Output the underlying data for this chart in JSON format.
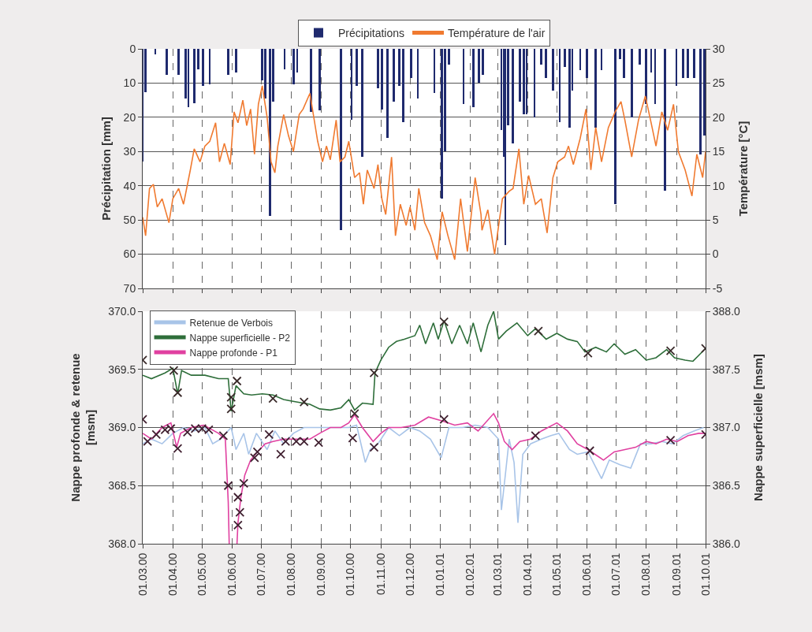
{
  "chart_data": [
    {
      "type": "bar",
      "ylabel": "Précipitation [mm]",
      "y2label": "Température [°C]",
      "legend": "top",
      "grid": true,
      "tick_labels": "y",
      "xlim": [
        "2000-03-01",
        "2001-10-01"
      ],
      "xticks": [
        {
          "value": "2000-03-01",
          "label": null
        },
        {
          "value": "2000-04-01",
          "label": null
        },
        {
          "value": "2000-05-01",
          "label": null
        },
        {
          "value": "2000-06-01",
          "label": null
        },
        {
          "value": "2000-07-01",
          "label": null
        },
        {
          "value": "2000-08-01",
          "label": null
        },
        {
          "value": "2000-09-01",
          "label": null
        },
        {
          "value": "2000-10-01",
          "label": null
        },
        {
          "value": "2000-11-01",
          "label": null
        },
        {
          "value": "2000-12-01",
          "label": null
        },
        {
          "value": "2001-01-01",
          "label": null
        },
        {
          "value": "2001-02-01",
          "label": null
        },
        {
          "value": "2001-03-01",
          "label": null
        },
        {
          "value": "2001-04-01",
          "label": null
        },
        {
          "value": "2001-05-01",
          "label": null
        },
        {
          "value": "2001-06-01",
          "label": null
        },
        {
          "value": "2001-07-01",
          "label": null
        },
        {
          "value": "2001-08-01",
          "label": null
        },
        {
          "value": "2001-09-01",
          "label": null
        },
        {
          "value": "2001-10-01",
          "label": null
        }
      ],
      "ylim": [
        70,
        0
      ],
      "yticks": [
        0,
        10,
        20,
        30,
        40,
        50,
        60,
        70
      ],
      "y2lim": [
        -5,
        30
      ],
      "y2ticks": [
        -5,
        0,
        5,
        10,
        15,
        20,
        25,
        30
      ],
      "series": [
        {
          "name": "Précipitations",
          "color": "#1f2a6e",
          "x": [
            "2000-03-01",
            "2000-03-04",
            "2000-03-14",
            "2000-03-26",
            "2000-04-07",
            "2000-04-14",
            "2000-04-17",
            "2000-04-23",
            "2000-04-27",
            "2000-05-02",
            "2000-05-09",
            "2000-05-28",
            "2000-06-05",
            "2000-07-02",
            "2000-07-05",
            "2000-07-10",
            "2000-07-13",
            "2000-07-25",
            "2000-08-03",
            "2000-08-07",
            "2000-08-21",
            "2000-08-30",
            "2000-09-21",
            "2000-10-02",
            "2000-10-07",
            "2000-10-13",
            "2000-10-29",
            "2000-11-02",
            "2000-11-08",
            "2000-11-14",
            "2000-11-20",
            "2000-11-24",
            "2000-12-02",
            "2000-12-09",
            "2000-12-26",
            "2001-01-03",
            "2001-01-06",
            "2001-01-10",
            "2001-01-25",
            "2001-02-04",
            "2001-02-10",
            "2001-02-14",
            "2001-03-05",
            "2001-03-08",
            "2001-03-09",
            "2001-03-12",
            "2001-03-17",
            "2001-03-24",
            "2001-03-28",
            "2001-03-31",
            "2001-04-08",
            "2001-04-15",
            "2001-04-20",
            "2001-04-27",
            "2001-05-04",
            "2001-05-09",
            "2001-05-14",
            "2001-05-17",
            "2001-05-25",
            "2001-06-01",
            "2001-06-10",
            "2001-06-16",
            "2001-06-30",
            "2001-07-05",
            "2001-07-09",
            "2001-07-17",
            "2001-07-25",
            "2001-08-01",
            "2001-08-06",
            "2001-08-10",
            "2001-08-20",
            "2001-09-01",
            "2001-09-08",
            "2001-09-13",
            "2001-09-19",
            "2001-09-26",
            "2001-09-30"
          ],
          "values": [
            33,
            12.7,
            1.5,
            7.7,
            7.7,
            14.6,
            17,
            15.8,
            6,
            10.8,
            10.4,
            7.7,
            7,
            9.2,
            14.6,
            48.8,
            15.4,
            6,
            10.4,
            7,
            18.5,
            18,
            53,
            20.8,
            10.8,
            31.5,
            11.5,
            17.7,
            26,
            15.4,
            10.8,
            21.5,
            8.5,
            14.6,
            13,
            43.8,
            30,
            4.6,
            16.2,
            17,
            10,
            7.7,
            23.8,
            31.5,
            57.3,
            22.3,
            27.7,
            15.4,
            19.2,
            19.2,
            20,
            4.6,
            8.5,
            12.3,
            21.5,
            5.4,
            23,
            12.3,
            6.2,
            8.5,
            23,
            6.2,
            45.4,
            3,
            8.5,
            20,
            4.6,
            16.2,
            7,
            16.2,
            41.5,
            10.8,
            8.5,
            8.5,
            8.5,
            30.8,
            25.4
          ]
        },
        {
          "name": "Température de l'air",
          "type": "line",
          "axis": "y2",
          "color": "#f07a30",
          "x": [
            "2000-03-01",
            "2000-03-04",
            "2000-03-08",
            "2000-03-12",
            "2000-03-16",
            "2000-03-21",
            "2000-03-28",
            "2000-04-01",
            "2000-04-07",
            "2000-04-12",
            "2000-04-19",
            "2000-04-23",
            "2000-04-29",
            "2000-05-04",
            "2000-05-09",
            "2000-05-15",
            "2000-05-19",
            "2000-05-24",
            "2000-05-30",
            "2000-06-03",
            "2000-06-07",
            "2000-06-12",
            "2000-06-16",
            "2000-06-20",
            "2000-06-24",
            "2000-06-28",
            "2000-07-02",
            "2000-07-07",
            "2000-07-11",
            "2000-07-15",
            "2000-07-18",
            "2000-07-24",
            "2000-07-29",
            "2000-08-03",
            "2000-08-09",
            "2000-08-13",
            "2000-08-20",
            "2000-08-24",
            "2000-08-28",
            "2000-09-02",
            "2000-09-06",
            "2000-09-10",
            "2000-09-16",
            "2000-09-20",
            "2000-09-25",
            "2000-09-29",
            "2000-10-05",
            "2000-10-10",
            "2000-10-14",
            "2000-10-18",
            "2000-10-25",
            "2000-10-29",
            "2000-11-02",
            "2000-11-06",
            "2000-11-12",
            "2000-11-16",
            "2000-11-21",
            "2000-11-27",
            "2000-12-01",
            "2000-12-06",
            "2000-12-10",
            "2000-12-16",
            "2000-12-22",
            "2000-12-29",
            "2001-01-03",
            "2001-01-09",
            "2001-01-16",
            "2001-01-22",
            "2001-01-29",
            "2001-02-06",
            "2001-02-12",
            "2001-02-13",
            "2001-02-19",
            "2001-02-26",
            "2001-03-06",
            "2001-03-13",
            "2001-03-17",
            "2001-03-23",
            "2001-03-28",
            "2001-04-02",
            "2001-04-09",
            "2001-04-15",
            "2001-04-21",
            "2001-04-27",
            "2001-05-02",
            "2001-05-09",
            "2001-05-13",
            "2001-05-18",
            "2001-05-25",
            "2001-05-31",
            "2001-06-05",
            "2001-06-10",
            "2001-06-16",
            "2001-06-23",
            "2001-06-30",
            "2001-07-06",
            "2001-07-10",
            "2001-07-17",
            "2001-07-24",
            "2001-07-31",
            "2001-08-06",
            "2001-08-11",
            "2001-08-17",
            "2001-08-23",
            "2001-08-29",
            "2001-09-03",
            "2001-09-10",
            "2001-09-17",
            "2001-09-22",
            "2001-09-28",
            "2001-10-01"
          ],
          "values": [
            5.4,
            2.7,
            9.6,
            10.2,
            6.9,
            8.1,
            4.6,
            8.1,
            9.6,
            7.3,
            12.3,
            15.4,
            13.5,
            15.8,
            16.5,
            19.2,
            13.5,
            16.2,
            13.1,
            20.8,
            19.2,
            22.5,
            18.8,
            21.2,
            14.6,
            21.9,
            24.6,
            20,
            13.5,
            11.9,
            15.8,
            20.4,
            17.3,
            15,
            20.4,
            21.2,
            23.5,
            20,
            16.5,
            13.5,
            15.8,
            13.8,
            19.6,
            13.5,
            14.2,
            16.5,
            11.2,
            11.9,
            7.3,
            12.3,
            9.6,
            13.1,
            8.1,
            5.8,
            14.2,
            2.7,
            7.3,
            4.2,
            6.9,
            3.5,
            9.6,
            4.6,
            2.7,
            -0.8,
            6.2,
            2.7,
            -0.8,
            8.1,
            0.4,
            11.2,
            5.8,
            3.5,
            6.5,
            0,
            8.1,
            9.2,
            9.6,
            15.4,
            7.3,
            11.5,
            7.3,
            8.1,
            3.1,
            11.2,
            13.5,
            14.2,
            15.8,
            13.1,
            16.9,
            21.2,
            12.3,
            18.5,
            13.5,
            18.5,
            20.8,
            22.3,
            19.6,
            14.2,
            19.6,
            23.1,
            19.2,
            15.8,
            20.8,
            18.1,
            21.9,
            15,
            12.3,
            8.5,
            14.6,
            11.2,
            15
          ]
        }
      ]
    },
    {
      "type": "line",
      "ylabel": "Nappe profonde & retenue\n[msm]",
      "y2label": "Nappe superficielle [msm]",
      "legend": "top left",
      "grid": true,
      "xlim": [
        "2000-03-01",
        "2001-10-01"
      ],
      "xticks": [
        {
          "value": "2000-03-01",
          "label": "01.03.00"
        },
        {
          "value": "2000-04-01",
          "label": "01.04.00"
        },
        {
          "value": "2000-05-01",
          "label": "01.05.00"
        },
        {
          "value": "2000-06-01",
          "label": "01.06.00"
        },
        {
          "value": "2000-07-01",
          "label": "01.07.00"
        },
        {
          "value": "2000-08-01",
          "label": "01.08.00"
        },
        {
          "value": "2000-09-01",
          "label": "01.09.00"
        },
        {
          "value": "2000-10-01",
          "label": "01.10.00"
        },
        {
          "value": "2000-11-01",
          "label": "01.11.00"
        },
        {
          "value": "2000-12-01",
          "label": "01.12.00"
        },
        {
          "value": "2001-01-01",
          "label": "01.01.01"
        },
        {
          "value": "2001-02-01",
          "label": "01.02.01"
        },
        {
          "value": "2001-03-01",
          "label": "01.03.01"
        },
        {
          "value": "2001-04-01",
          "label": "01.04.01"
        },
        {
          "value": "2001-05-01",
          "label": "01.05.01"
        },
        {
          "value": "2001-06-01",
          "label": "01.06.01"
        },
        {
          "value": "2001-07-01",
          "label": "01.07.01"
        },
        {
          "value": "2001-08-01",
          "label": "01.08.01"
        },
        {
          "value": "2001-09-01",
          "label": "01.09.01"
        },
        {
          "value": "2001-10-01",
          "label": "01.10.01"
        }
      ],
      "ylim": [
        368,
        370
      ],
      "yticks": [
        {
          "value": 368,
          "label": "368.0"
        },
        {
          "value": 368.5,
          "label": "368.5"
        },
        {
          "value": 369,
          "label": "369.0"
        },
        {
          "value": 369.5,
          "label": "369.5"
        },
        {
          "value": 370,
          "label": "370.0"
        }
      ],
      "y2lim": [
        386,
        388
      ],
      "y2ticks": [
        {
          "value": 386,
          "label": "386.0"
        },
        {
          "value": 386.5,
          "label": "386.5"
        },
        {
          "value": 387,
          "label": "387.0"
        },
        {
          "value": 387.5,
          "label": "387.5"
        },
        {
          "value": 388,
          "label": "388.0"
        }
      ],
      "series": [
        {
          "name": "Retenue de Verbois",
          "color": "#a8c4e8",
          "x": [
            "2000-03-01",
            "2000-03-10",
            "2000-03-21",
            "2000-04-01",
            "2000-04-12",
            "2000-04-23",
            "2000-05-04",
            "2000-05-12",
            "2000-05-20",
            "2000-05-31",
            "2000-06-05",
            "2000-06-13",
            "2000-06-18",
            "2000-06-26",
            "2000-07-07",
            "2000-07-15",
            "2000-07-24",
            "2000-08-03",
            "2000-08-14",
            "2000-09-05",
            "2000-09-29",
            "2000-10-07",
            "2000-10-16",
            "2000-10-21",
            "2000-10-29",
            "2000-11-09",
            "2000-11-20",
            "2000-12-01",
            "2000-12-11",
            "2000-12-22",
            "2001-01-02",
            "2001-01-10",
            "2001-01-24",
            "2001-02-06",
            "2001-02-19",
            "2001-03-02",
            "2001-03-05",
            "2001-03-09",
            "2001-03-13",
            "2001-03-18",
            "2001-03-22",
            "2001-03-27",
            "2001-04-04",
            "2001-04-15",
            "2001-04-25",
            "2001-05-03",
            "2001-05-14",
            "2001-05-22",
            "2001-06-02",
            "2001-06-16",
            "2001-06-24",
            "2001-07-05",
            "2001-07-16",
            "2001-07-26",
            "2001-08-06",
            "2001-08-17",
            "2001-08-28",
            "2001-09-08",
            "2001-09-19",
            "2001-09-29"
          ],
          "values": [
            368.86,
            368.9,
            368.86,
            368.95,
            369.0,
            368.97,
            369.0,
            368.86,
            368.9,
            369.0,
            368.81,
            368.95,
            368.77,
            368.95,
            368.81,
            368.97,
            368.86,
            368.95,
            369.0,
            369.0,
            369.0,
            369.02,
            368.7,
            368.81,
            368.86,
            369.0,
            368.93,
            369.0,
            368.97,
            368.9,
            368.74,
            369.0,
            369.0,
            369.02,
            369.0,
            368.9,
            368.29,
            368.59,
            368.9,
            368.7,
            368.18,
            368.77,
            368.86,
            368.9,
            368.93,
            368.95,
            368.81,
            368.77,
            368.79,
            368.56,
            368.72,
            368.68,
            368.65,
            368.86,
            368.86,
            368.88,
            368.86,
            368.93,
            368.97,
            369.0
          ]
        },
        {
          "name": "Nappe superficielle - P2",
          "axis": "y2",
          "color": "#2e6e3a",
          "x": [
            "2000-03-01",
            "2000-03-10",
            "2000-03-24",
            "2000-04-01",
            "2000-04-06",
            "2000-04-10",
            "2000-04-20",
            "2000-05-04",
            "2000-05-18",
            "2000-05-28",
            "2000-05-31",
            "2000-06-05",
            "2000-06-13",
            "2000-06-21",
            "2000-07-02",
            "2000-07-13",
            "2000-07-24",
            "2000-08-06",
            "2000-08-20",
            "2000-08-30",
            "2000-09-10",
            "2000-09-21",
            "2000-09-29",
            "2000-10-05",
            "2000-10-13",
            "2000-10-24",
            "2000-10-26",
            "2000-11-01",
            "2000-11-09",
            "2000-11-17",
            "2000-11-25",
            "2000-12-06",
            "2000-12-11",
            "2000-12-17",
            "2000-12-25",
            "2000-12-30",
            "2001-01-05",
            "2001-01-13",
            "2001-01-21",
            "2001-01-29",
            "2001-02-04",
            "2001-02-12",
            "2001-02-19",
            "2001-02-25",
            "2001-03-02",
            "2001-03-10",
            "2001-03-21",
            "2001-04-01",
            "2001-04-09",
            "2001-04-20",
            "2001-05-01",
            "2001-05-12",
            "2001-05-22",
            "2001-05-30",
            "2001-06-10",
            "2001-06-21",
            "2001-06-29",
            "2001-07-10",
            "2001-07-21",
            "2001-08-01",
            "2001-08-11",
            "2001-08-22",
            "2001-08-30",
            "2001-09-10",
            "2001-09-18",
            "2001-10-01"
          ],
          "values": [
            387.45,
            387.42,
            387.47,
            387.51,
            387.29,
            387.49,
            387.45,
            387.45,
            387.42,
            387.42,
            387.14,
            387.36,
            387.29,
            387.28,
            387.29,
            387.28,
            387.24,
            387.22,
            387.2,
            387.16,
            387.15,
            387.17,
            387.24,
            387.15,
            387.21,
            387.2,
            387.47,
            387.58,
            387.69,
            387.74,
            387.76,
            387.79,
            387.88,
            387.72,
            387.9,
            387.76,
            387.92,
            387.72,
            387.88,
            387.72,
            387.9,
            387.65,
            387.88,
            388.0,
            387.76,
            387.83,
            387.9,
            387.79,
            387.85,
            387.76,
            387.81,
            387.76,
            387.74,
            387.65,
            387.69,
            387.65,
            387.72,
            387.63,
            387.67,
            387.58,
            387.6,
            387.67,
            387.6,
            387.58,
            387.57,
            387.68
          ]
        },
        {
          "name": "Nappe profonde - P1",
          "color": "#e040a0",
          "x": [
            "2000-03-01",
            "2000-03-10",
            "2000-03-21",
            "2000-03-30",
            "2000-04-05",
            "2000-04-09",
            "2000-04-20",
            "2000-05-03",
            "2000-05-18",
            "2000-05-25",
            "2000-05-28",
            "2000-05-29",
            "2000-05-31",
            "2000-06-06",
            "2000-06-07",
            "2000-06-10",
            "2000-06-14",
            "2000-06-20",
            "2000-06-27",
            "2000-07-05",
            "2000-07-13",
            "2000-07-24",
            "2000-08-06",
            "2000-08-20",
            "2000-08-30",
            "2000-09-10",
            "2000-09-21",
            "2000-09-29",
            "2000-10-05",
            "2000-10-13",
            "2000-10-24",
            "2000-11-01",
            "2000-11-09",
            "2000-11-22",
            "2000-12-06",
            "2000-12-20",
            "2001-01-02",
            "2001-01-16",
            "2001-01-29",
            "2001-02-09",
            "2001-02-25",
            "2001-03-02",
            "2001-03-08",
            "2001-03-16",
            "2001-03-24",
            "2001-04-04",
            "2001-04-15",
            "2001-05-01",
            "2001-05-12",
            "2001-05-22",
            "2001-06-02",
            "2001-06-18",
            "2001-06-29",
            "2001-07-10",
            "2001-07-21",
            "2001-08-01",
            "2001-08-11",
            "2001-08-22",
            "2001-09-02",
            "2001-09-13",
            "2001-09-24",
            "2001-10-01"
          ],
          "values": [
            368.95,
            368.9,
            369.0,
            369.04,
            368.83,
            368.95,
            369.0,
            369.02,
            368.95,
            368.9,
            368.36,
            368.0,
            null,
            368.0,
            368.18,
            368.4,
            368.59,
            368.72,
            368.79,
            368.86,
            368.88,
            368.9,
            368.9,
            368.9,
            368.95,
            369.0,
            369.0,
            369.04,
            369.11,
            369.0,
            368.88,
            368.95,
            369.0,
            369.0,
            369.02,
            369.09,
            369.06,
            369.02,
            369.04,
            368.97,
            369.12,
            369.04,
            368.88,
            368.81,
            368.88,
            368.9,
            368.97,
            369.04,
            368.97,
            368.86,
            368.81,
            368.72,
            368.79,
            368.81,
            368.83,
            368.88,
            368.86,
            368.9,
            368.88,
            368.93,
            368.95,
            368.95
          ]
        },
        {
          "type": "scatter",
          "marker": "cross",
          "axis": "y2",
          "color": "#3a2a2a",
          "x": [
            "2000-03-01",
            "2000-04-02",
            "2000-04-06",
            "2000-05-31",
            "2000-05-31",
            "2000-06-06",
            "2000-07-13",
            "2000-08-14",
            "2000-10-05",
            "2000-10-25",
            "2001-01-05",
            "2001-04-12",
            "2001-06-02",
            "2001-08-26",
            "2001-10-01"
          ],
          "values": [
            387.58,
            387.49,
            387.3,
            387.16,
            387.26,
            387.4,
            387.25,
            387.22,
            387.12,
            387.47,
            387.91,
            387.83,
            387.64,
            387.66,
            387.68
          ]
        },
        {
          "type": "scatter",
          "marker": "cross",
          "color": "#402030",
          "x": [
            "2000-03-01",
            "2000-03-06",
            "2000-03-15",
            "2000-03-24",
            "2000-03-30",
            "2000-04-06",
            "2000-04-16",
            "2000-04-24",
            "2000-05-01",
            "2000-05-08",
            "2000-05-23",
            "2000-05-28",
            "2000-06-07",
            "2000-06-09",
            "2000-06-07",
            "2000-06-13",
            "2000-06-24",
            "2000-06-27",
            "2000-07-09",
            "2000-07-21",
            "2000-07-26",
            "2000-08-06",
            "2000-08-14",
            "2000-08-29",
            "2000-10-03",
            "2000-10-25",
            "2001-01-05",
            "2001-04-09",
            "2001-06-04",
            "2001-08-26",
            "2001-10-01"
          ],
          "values": [
            369.07,
            368.88,
            368.94,
            368.98,
            368.99,
            368.82,
            368.96,
            368.99,
            368.99,
            368.98,
            368.93,
            368.5,
            368.4,
            368.27,
            368.16,
            368.52,
            368.74,
            368.79,
            368.94,
            368.77,
            368.88,
            368.88,
            368.88,
            368.87,
            368.91,
            368.83,
            369.07,
            368.93,
            368.8,
            368.89,
            368.94
          ]
        }
      ]
    }
  ]
}
